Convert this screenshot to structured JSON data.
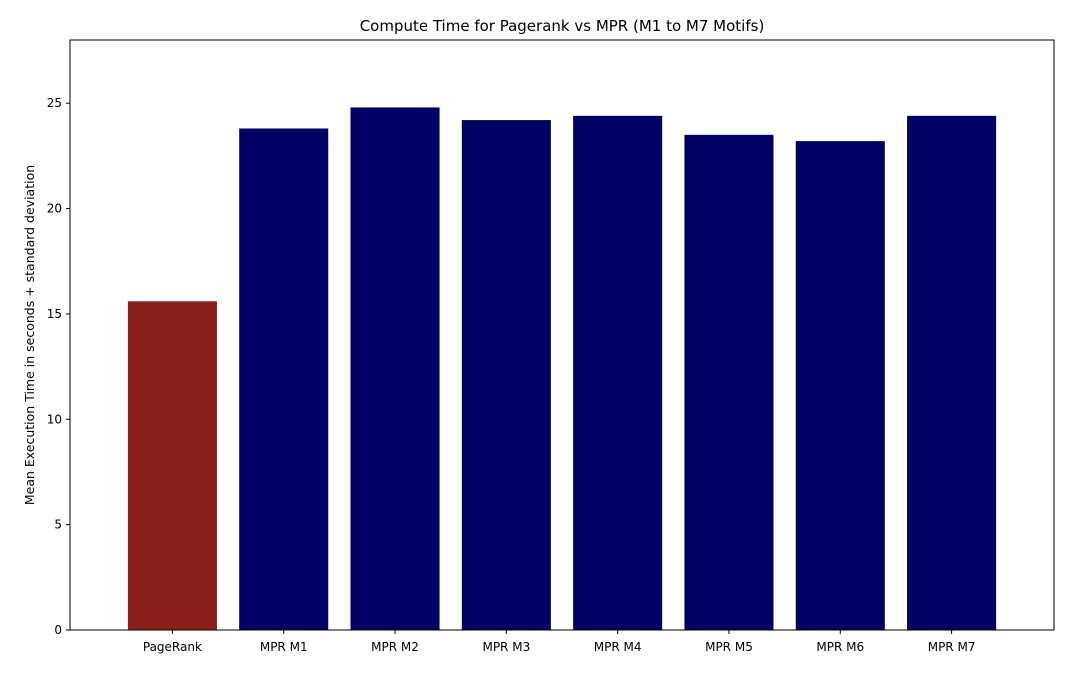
{
  "chart_data": {
    "type": "bar",
    "title": "Compute Time for Pagerank vs MPR (M1 to M7 Motifs)",
    "xlabel": "",
    "ylabel": "Mean Execution Time in seconds + standard deviation",
    "categories": [
      "PageRank",
      "MPR M1",
      "MPR M2",
      "MPR M3",
      "MPR M4",
      "MPR M5",
      "MPR M6",
      "MPR M7"
    ],
    "values": [
      15.6,
      23.8,
      24.8,
      24.2,
      24.4,
      23.5,
      23.2,
      24.4
    ],
    "bar_colors": [
      "#8b1f1e",
      "#000062",
      "#000062",
      "#000062",
      "#000062",
      "#000062",
      "#000062",
      "#000062"
    ],
    "ylim": [
      0,
      28
    ],
    "yticks": [
      0,
      5,
      10,
      15,
      20,
      25
    ],
    "grid": false,
    "legend": null
  }
}
